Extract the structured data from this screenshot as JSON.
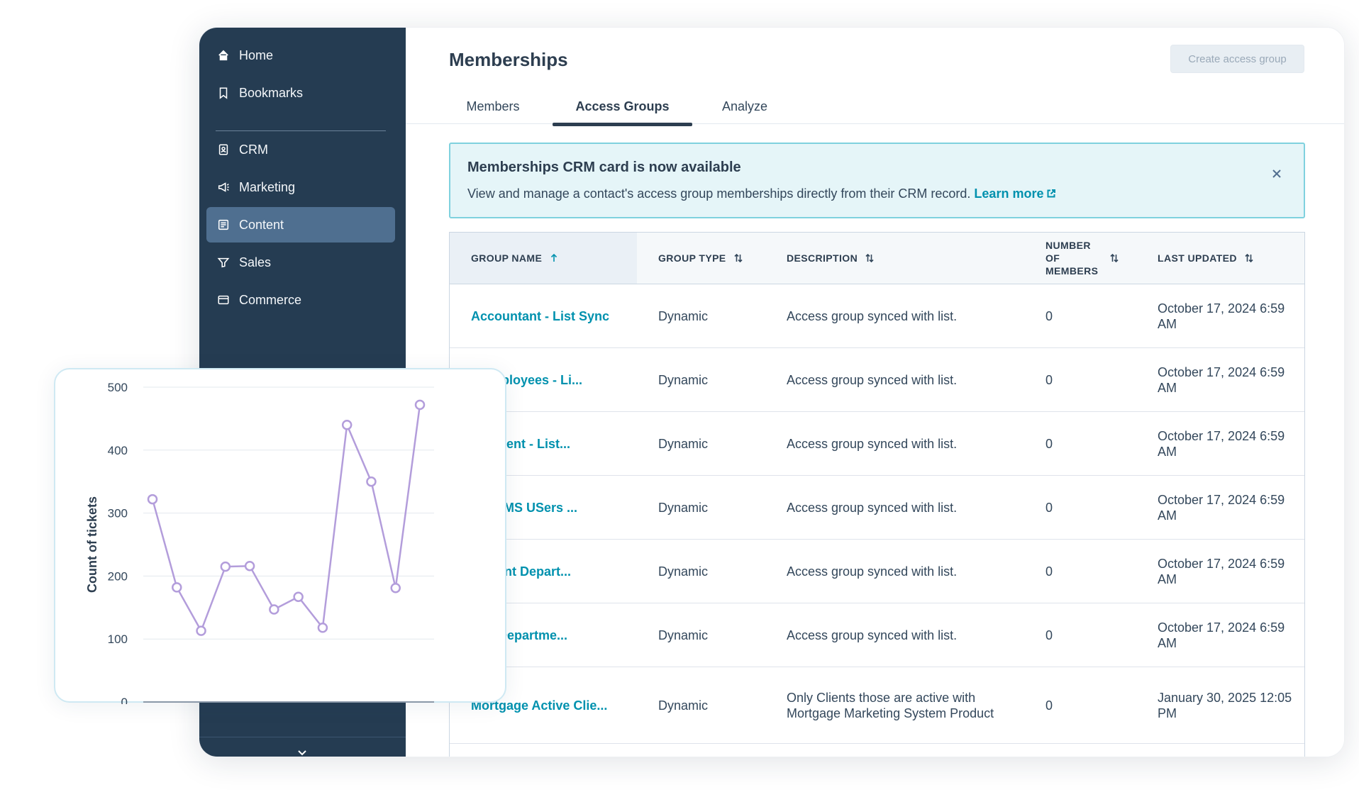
{
  "sidebar": {
    "items": [
      {
        "label": "Home",
        "icon": "home-icon"
      },
      {
        "label": "Bookmarks",
        "icon": "bookmark-icon"
      },
      {
        "label": "CRM",
        "icon": "contacts-icon"
      },
      {
        "label": "Marketing",
        "icon": "megaphone-icon"
      },
      {
        "label": "Content",
        "icon": "content-icon",
        "active": true
      },
      {
        "label": "Sales",
        "icon": "sales-icon"
      },
      {
        "label": "Commerce",
        "icon": "commerce-icon"
      }
    ]
  },
  "header": {
    "title": "Memberships",
    "create_button": "Create access group"
  },
  "tabs": [
    "Members",
    "Access Groups",
    "Analyze"
  ],
  "active_tab": "Access Groups",
  "banner": {
    "title": "Memberships CRM card is now available",
    "text": "View and manage a contact's access group memberships directly from their CRM record.",
    "link": "Learn more"
  },
  "table": {
    "columns": [
      "GROUP NAME",
      "GROUP TYPE",
      "DESCRIPTION",
      "NUMBER OF MEMBERS",
      "LAST UPDATED"
    ],
    "rows": [
      {
        "name": "Accountant - List Sync",
        "type": "Dynamic",
        "description": "Access group synced with list.",
        "members": "0",
        "updated": "October 17, 2024 6:59 AM"
      },
      {
        "name": "e Employees - Li...",
        "type": "Dynamic",
        "description": "Access group synced with list.",
        "members": "0",
        "updated": "October 17, 2024 6:59 AM"
      },
      {
        "name": "partment - List...",
        "type": "Dynamic",
        "description": "Access group synced with list.",
        "members": "0",
        "updated": "October 17, 2024 6:59 AM"
      },
      {
        "name": "pot CMS USers ...",
        "type": "Dynamic",
        "description": "Access group synced with list.",
        "members": "0",
        "updated": "October 17, 2024 6:59 AM"
      },
      {
        "name": "gement Depart...",
        "type": "Dynamic",
        "description": "Access group synced with list.",
        "members": "0",
        "updated": "October 17, 2024 6:59 AM"
      },
      {
        "name": "ting Departme...",
        "type": "Dynamic",
        "description": "Access group synced with list.",
        "members": "0",
        "updated": "October 17, 2024 6:59 AM"
      },
      {
        "name": "Mortgage Active Clie...",
        "type": "Dynamic",
        "description": "Only Clients those are active with Mortgage Marketing System Product",
        "members": "0",
        "updated": "January 30, 2025 12:05 PM"
      }
    ]
  },
  "colors": {
    "sidebar_bg": "#253c52",
    "active_nav": "#4f6f90",
    "link": "#0091ae",
    "banner_bg": "#e5f5f8",
    "banner_border": "#7fd1de",
    "chart_line": "#b39ddb"
  },
  "chart_data": {
    "type": "line",
    "ylabel": "Count of tickets",
    "xlabel": "",
    "ylim": [
      0,
      500
    ],
    "yticks": [
      0,
      100,
      200,
      300,
      400,
      500
    ],
    "grid": true,
    "series": [
      {
        "values": [
          322,
          182,
          113,
          215,
          216,
          147,
          167,
          118,
          440,
          350,
          181,
          472
        ]
      }
    ]
  }
}
